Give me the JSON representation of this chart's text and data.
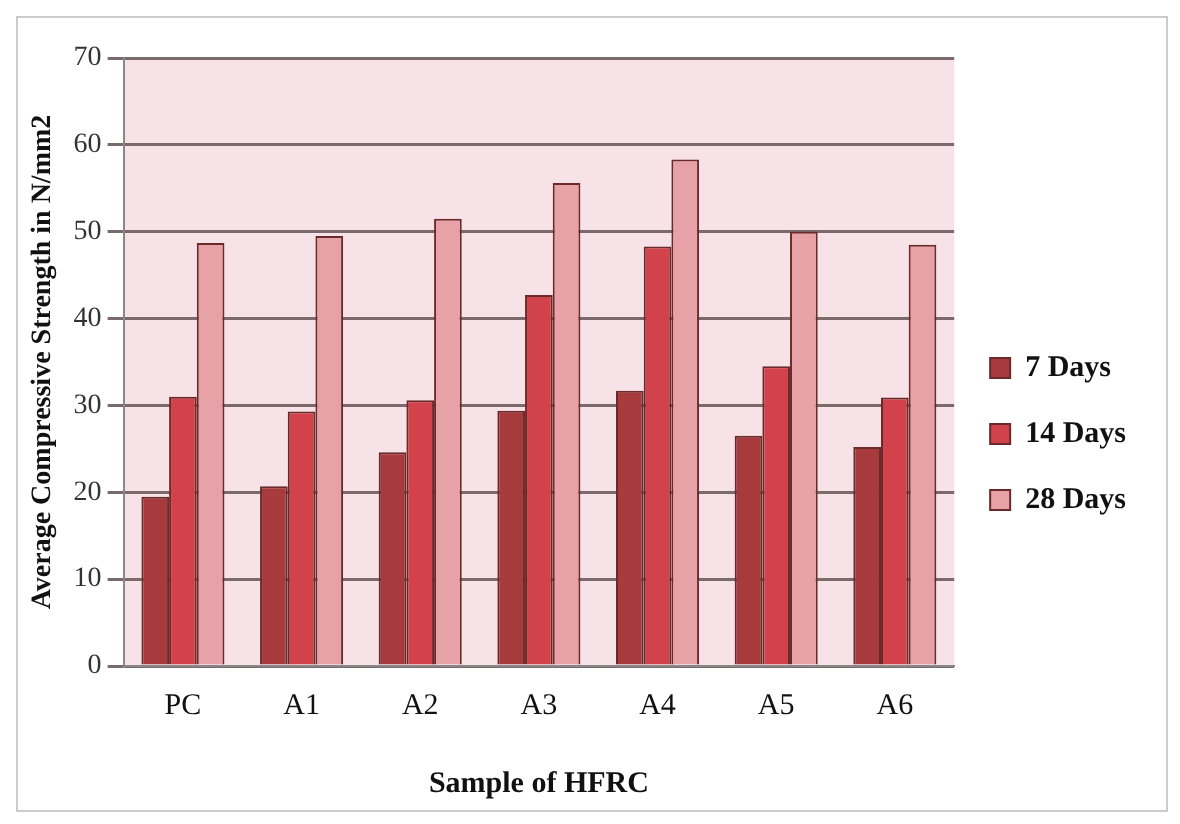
{
  "chart_data": {
    "type": "bar",
    "xlabel": "Sample of HFRC",
    "ylabel": "Average Compressive Strength in N/mm2",
    "categories": [
      "PC",
      "A1",
      "A2",
      "A3",
      "A4",
      "A5",
      "A6"
    ],
    "series": [
      {
        "name": "7 Days",
        "color": "#a63a3c",
        "values": [
          19.5,
          20.7,
          24.6,
          29.4,
          31.7,
          26.5,
          25.2
        ]
      },
      {
        "name": "14 Days",
        "color": "#d2424a",
        "values": [
          31,
          29.3,
          30.6,
          42.7,
          48.3,
          34.5,
          30.9
        ]
      },
      {
        "name": "28 Days",
        "color": "#e6a2a6",
        "values": [
          48.7,
          49.5,
          51.5,
          55.6,
          58.3,
          50,
          48.5
        ]
      }
    ],
    "ylim": [
      0,
      70
    ],
    "yticks": [
      0,
      10,
      20,
      30,
      40,
      50,
      60,
      70
    ],
    "grid": "y",
    "legend": "right"
  }
}
